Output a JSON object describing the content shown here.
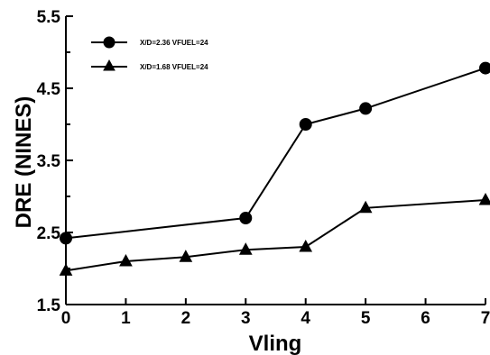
{
  "chart_data": {
    "type": "line",
    "title": "",
    "xlabel": "Vling",
    "ylabel": "DRE  (NINES)",
    "xlim": [
      0,
      7
    ],
    "ylim": [
      1.5,
      5.5
    ],
    "x_ticks": [
      "0",
      "1",
      "2",
      "3",
      "4",
      "5",
      "6",
      "7"
    ],
    "y_ticks": [
      "1.5",
      "2.5",
      "3.5",
      "4.5",
      "5.5"
    ],
    "grid": false,
    "legend_position": "top-left",
    "series": [
      {
        "name": "X/D=2.36   VFUEL=24",
        "marker": "circle",
        "x": [
          0,
          3,
          4,
          5,
          7
        ],
        "y": [
          2.42,
          2.7,
          4.0,
          4.22,
          4.78
        ]
      },
      {
        "name": "X/D=1.68   VFUEL=24",
        "marker": "triangle",
        "x": [
          0,
          1,
          2,
          3,
          4,
          5,
          7
        ],
        "y": [
          1.97,
          2.1,
          2.16,
          2.26,
          2.3,
          2.84,
          2.95
        ]
      }
    ]
  }
}
